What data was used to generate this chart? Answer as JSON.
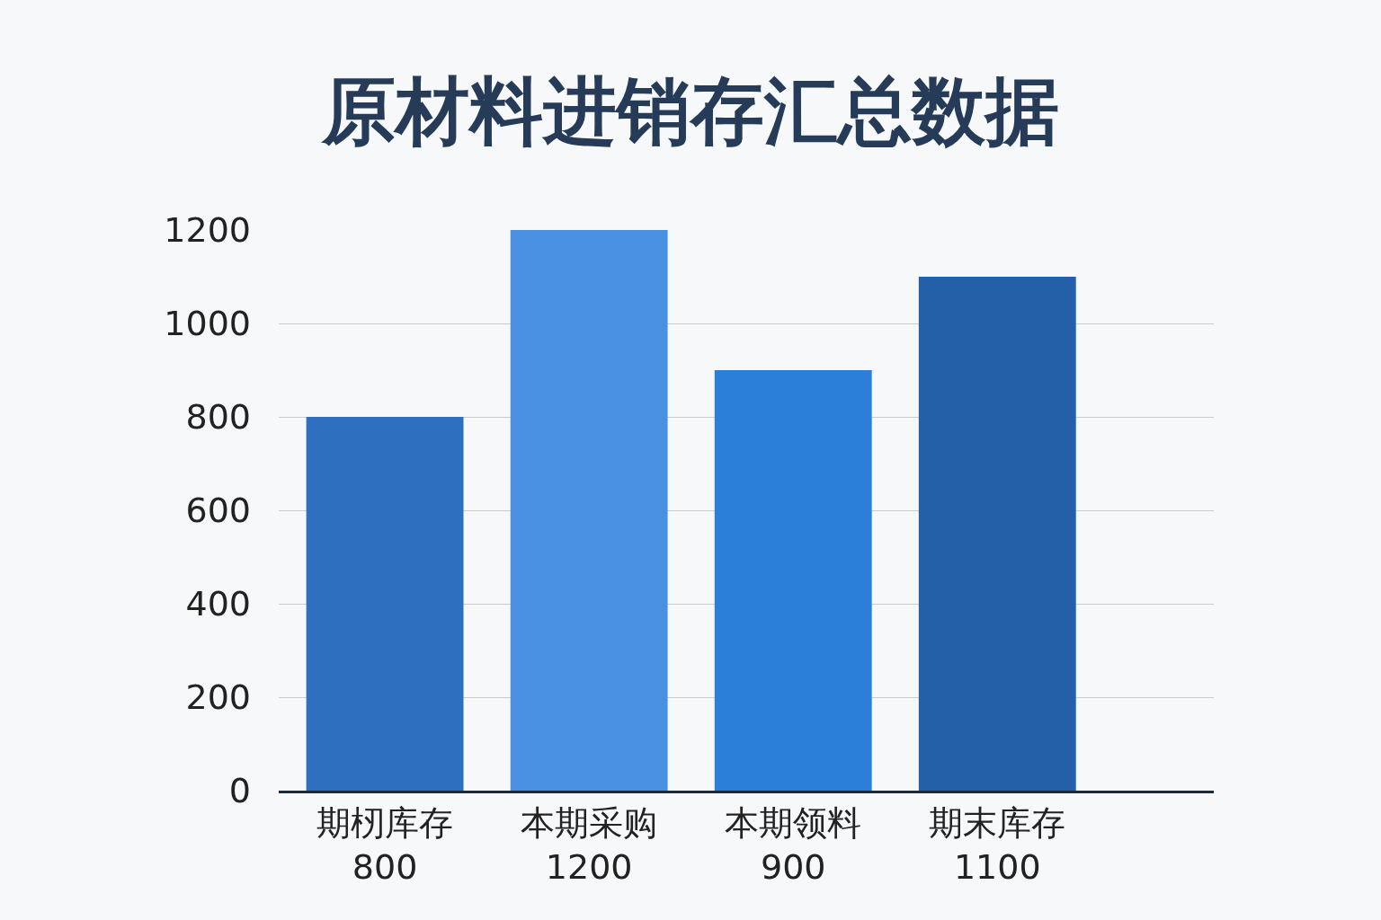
{
  "chart_data": {
    "type": "bar",
    "title": "原材料进销存汇总数据",
    "categories": [
      "期杒库存",
      "本期采购",
      "本期领料",
      "期末库存"
    ],
    "values": [
      800,
      1200,
      900,
      1100
    ],
    "colors": [
      "#2f6fbf",
      "#4a90e2",
      "#2b7fd9",
      "#2360a8"
    ],
    "ylim": [
      0,
      1200
    ],
    "yticks": [
      0,
      200,
      400,
      600,
      800,
      1000,
      1200
    ],
    "grid": "y",
    "data_labels": true
  }
}
